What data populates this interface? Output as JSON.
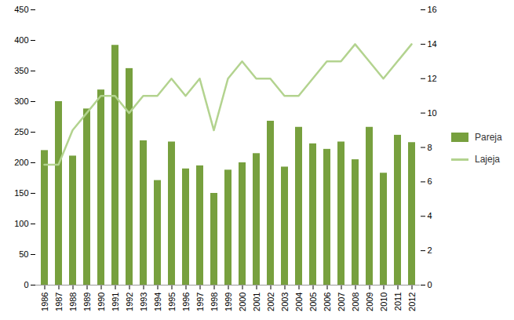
{
  "chart_data": {
    "type": "bar",
    "categories": [
      "1986",
      "1987",
      "1988",
      "1989",
      "1990",
      "1991",
      "1992",
      "1993",
      "1994",
      "1995",
      "1996",
      "1997",
      "1998",
      "1999",
      "2000",
      "2001",
      "2002",
      "2003",
      "2004",
      "2005",
      "2006",
      "2007",
      "2008",
      "2009",
      "2010",
      "2011",
      "2012"
    ],
    "series": [
      {
        "name": "Pareja",
        "type": "bar",
        "color": "#77a03e",
        "values": [
          220,
          300,
          211,
          288,
          319,
          392,
          354,
          236,
          171,
          234,
          190,
          195,
          150,
          188,
          200,
          215,
          268,
          193,
          258,
          231,
          222,
          234,
          205,
          258,
          183,
          245,
          233
        ]
      },
      {
        "name": "Lajeja",
        "type": "line",
        "axis": "y2",
        "color": "#b3d38f",
        "values": [
          7,
          7,
          9,
          10,
          11,
          11,
          10,
          11,
          11,
          12,
          11,
          12,
          9,
          12,
          13,
          12,
          12,
          11,
          11,
          12,
          13,
          13,
          14,
          13,
          12,
          13,
          14
        ]
      }
    ],
    "ylim": [
      0,
      450
    ],
    "yticks": [
      0,
      50,
      100,
      150,
      200,
      250,
      300,
      350,
      400,
      450
    ],
    "y2lim": [
      0,
      16
    ],
    "y2ticks": [
      0,
      2,
      4,
      6,
      8,
      10,
      12,
      14,
      16
    ],
    "grid": false,
    "legend": "right"
  }
}
